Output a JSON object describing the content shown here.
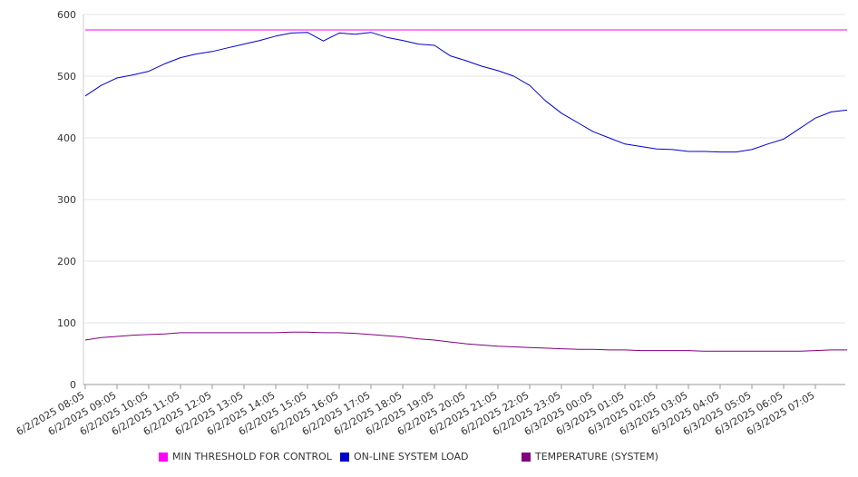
{
  "chart_data": {
    "type": "line",
    "title": "",
    "xlabel": "",
    "ylabel": "",
    "ylim": [
      0,
      600
    ],
    "y_ticks": [
      0,
      100,
      200,
      300,
      400,
      500,
      600
    ],
    "grid": true,
    "legend_position": "bottom",
    "x_tick_labels": [
      "6/2/2025 08:05",
      "6/2/2025 09:05",
      "6/2/2025 10:05",
      "6/2/2025 11:05",
      "6/2/2025 12:05",
      "6/2/2025 13:05",
      "6/2/2025 14:05",
      "6/2/2025 15:05",
      "6/2/2025 16:05",
      "6/2/2025 17:05",
      "6/2/2025 18:05",
      "6/2/2025 19:05",
      "6/2/2025 20:05",
      "6/2/2025 21:05",
      "6/2/2025 22:05",
      "6/2/2025 23:05",
      "6/3/2025 00:05",
      "6/3/2025 01:05",
      "6/3/2025 02:05",
      "6/3/2025 03:05",
      "6/3/2025 04:05",
      "6/3/2025 05:05",
      "6/3/2025 06:05",
      "6/3/2025 07:05"
    ],
    "x": [
      "6/2/2025 08:05",
      "6/2/2025 08:35",
      "6/2/2025 09:05",
      "6/2/2025 09:35",
      "6/2/2025 10:05",
      "6/2/2025 10:35",
      "6/2/2025 11:05",
      "6/2/2025 11:35",
      "6/2/2025 12:05",
      "6/2/2025 12:35",
      "6/2/2025 13:05",
      "6/2/2025 13:35",
      "6/2/2025 14:05",
      "6/2/2025 14:35",
      "6/2/2025 15:05",
      "6/2/2025 15:35",
      "6/2/2025 16:05",
      "6/2/2025 16:35",
      "6/2/2025 17:05",
      "6/2/2025 17:35",
      "6/2/2025 18:05",
      "6/2/2025 18:35",
      "6/2/2025 19:05",
      "6/2/2025 19:35",
      "6/2/2025 20:05",
      "6/2/2025 20:35",
      "6/2/2025 21:05",
      "6/2/2025 21:35",
      "6/2/2025 22:05",
      "6/2/2025 22:35",
      "6/2/2025 23:05",
      "6/2/2025 23:35",
      "6/3/2025 00:05",
      "6/3/2025 00:35",
      "6/3/2025 01:05",
      "6/3/2025 01:35",
      "6/3/2025 02:05",
      "6/3/2025 02:35",
      "6/3/2025 03:05",
      "6/3/2025 03:35",
      "6/3/2025 04:05",
      "6/3/2025 04:35",
      "6/3/2025 05:05",
      "6/3/2025 05:35",
      "6/3/2025 06:05",
      "6/3/2025 06:35",
      "6/3/2025 07:05",
      "6/3/2025 07:35",
      "6/3/2025 08:00"
    ],
    "series": [
      {
        "name": "MIN THRESHOLD FOR CONTROL",
        "color": "#ff00ff",
        "values": [
          575,
          575,
          575,
          575,
          575,
          575,
          575,
          575,
          575,
          575,
          575,
          575,
          575,
          575,
          575,
          575,
          575,
          575,
          575,
          575,
          575,
          575,
          575,
          575,
          575,
          575,
          575,
          575,
          575,
          575,
          575,
          575,
          575,
          575,
          575,
          575,
          575,
          575,
          575,
          575,
          575,
          575,
          575,
          575,
          575,
          575,
          575,
          575,
          575
        ]
      },
      {
        "name": "ON-LINE SYSTEM LOAD",
        "color": "#0000cc",
        "values": [
          468,
          485,
          497,
          502,
          508,
          520,
          530,
          536,
          540,
          546,
          552,
          558,
          565,
          570,
          571,
          557,
          570,
          568,
          571,
          563,
          558,
          552,
          550,
          533,
          525,
          516,
          509,
          500,
          485,
          460,
          440,
          425,
          410,
          400,
          390,
          386,
          382,
          381,
          378,
          378,
          377,
          377,
          381,
          390,
          398,
          415,
          432,
          442,
          445
        ]
      },
      {
        "name": "TEMPERATURE (SYSTEM)",
        "color": "#800080",
        "values": [
          72,
          76,
          78,
          80,
          81,
          82,
          84,
          84,
          84,
          84,
          84,
          84,
          84,
          85,
          85,
          84,
          84,
          83,
          81,
          79,
          77,
          74,
          72,
          69,
          66,
          64,
          62,
          61,
          60,
          59,
          58,
          57,
          57,
          56,
          56,
          55,
          55,
          55,
          55,
          54,
          54,
          54,
          54,
          54,
          54,
          54,
          55,
          56,
          56
        ]
      }
    ]
  }
}
